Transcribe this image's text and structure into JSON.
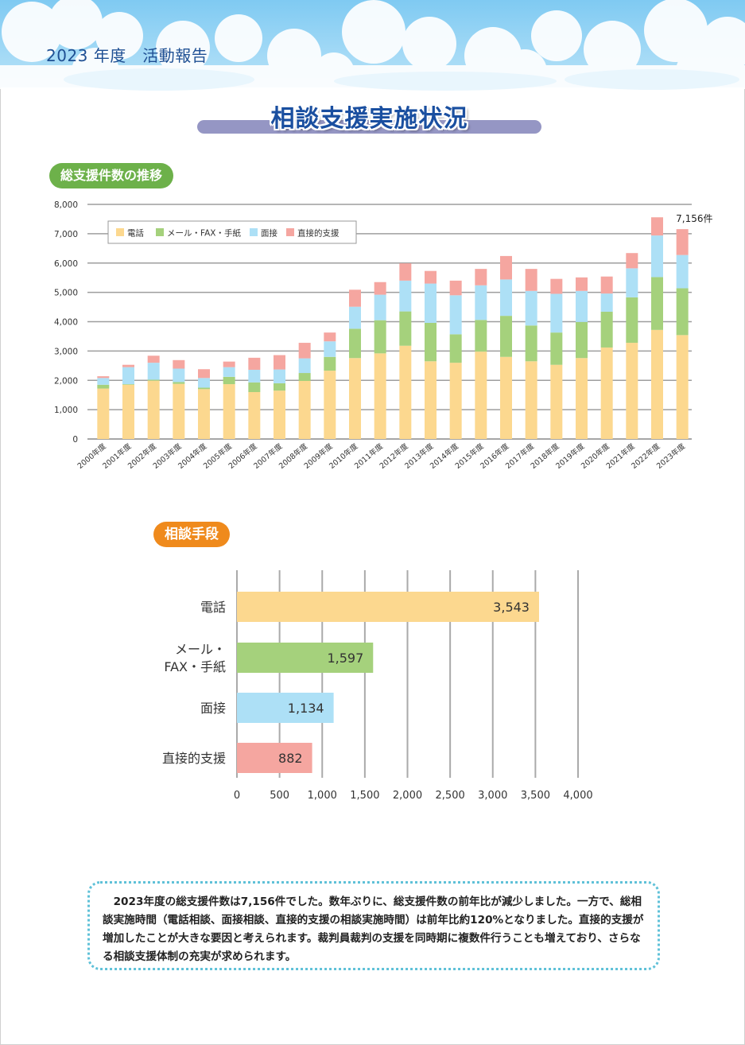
{
  "header": {
    "title": "2023 年度　活動報告"
  },
  "main_title": "相談支援実施状況",
  "section1_label": "総支援件数の推移",
  "section2_label": "相談手段",
  "colors": {
    "phone": "#fcd88f",
    "mail": "#a5d17c",
    "interview": "#ade0f6",
    "direct": "#f5a6a0",
    "sky": "#8dd1f4"
  },
  "chart_data": [
    {
      "type": "bar",
      "stacked": true,
      "categories": [
        "2000年度",
        "2001年度",
        "2002年度",
        "2003年度",
        "2004年度",
        "2005年度",
        "2006年度",
        "2007年度",
        "2008年度",
        "2009年度",
        "2010年度",
        "2011年度",
        "2012年度",
        "2013年度",
        "2014年度",
        "2015年度",
        "2016年度",
        "2017年度",
        "2018年度",
        "2019年度",
        "2020年度",
        "2021年度",
        "2022年度",
        "2023年度"
      ],
      "series": [
        {
          "name": "電話",
          "values": [
            1720,
            1850,
            1990,
            1880,
            1700,
            1870,
            1600,
            1650,
            1980,
            2330,
            2760,
            2920,
            3180,
            2650,
            2600,
            2980,
            2800,
            2650,
            2530,
            2760,
            3120,
            3280,
            3720,
            3543
          ]
        },
        {
          "name": "メール・FAX・手紙",
          "values": [
            130,
            20,
            30,
            60,
            50,
            250,
            330,
            250,
            270,
            470,
            1000,
            1130,
            1170,
            1310,
            970,
            1080,
            1400,
            1220,
            1100,
            1230,
            1220,
            1550,
            1800,
            1597
          ]
        },
        {
          "name": "面接",
          "values": [
            230,
            580,
            580,
            460,
            330,
            330,
            430,
            470,
            500,
            530,
            750,
            870,
            1050,
            1340,
            1330,
            1180,
            1240,
            1180,
            1320,
            1060,
            620,
            990,
            1420,
            1134
          ]
        },
        {
          "name": "直接的支援",
          "values": [
            60,
            80,
            240,
            290,
            300,
            190,
            410,
            490,
            530,
            300,
            580,
            430,
            590,
            430,
            500,
            560,
            800,
            750,
            510,
            460,
            580,
            520,
            620,
            882
          ]
        }
      ],
      "annotation": "7,156件",
      "ylim": [
        0,
        8000
      ],
      "yticks": [
        "0",
        "1,000",
        "2,000",
        "3,000",
        "4,000",
        "5,000",
        "6,000",
        "7,000",
        "8,000"
      ],
      "legend": "top-left",
      "grid": true
    },
    {
      "type": "bar",
      "orientation": "horizontal",
      "categories": [
        "電話",
        "メール・\nFAX・手紙",
        "面接",
        "直接的支援"
      ],
      "values": [
        3543,
        1597,
        1134,
        882
      ],
      "value_labels": [
        "3,543",
        "1,597",
        "1,134",
        "882"
      ],
      "xlim": [
        0,
        4000
      ],
      "xticks": [
        "0",
        "500",
        "1,000",
        "1,500",
        "2,000",
        "2,500",
        "3,000",
        "3,500",
        "4,000"
      ],
      "grid": true
    }
  ],
  "note": "2023年度の総支援件数は7,156件でした。数年ぶりに、総支援件数の前年比が減少しました。一方で、総相談実施時間（電話相談、面接相談、直接的支援の相談実施時間）は前年比約120%となりました。直接的支援が増加したことが大きな要因と考えられます。裁判員裁判の支援を同時期に複数件行うことも増えており、さらなる相談支援体制の充実が求められます。"
}
